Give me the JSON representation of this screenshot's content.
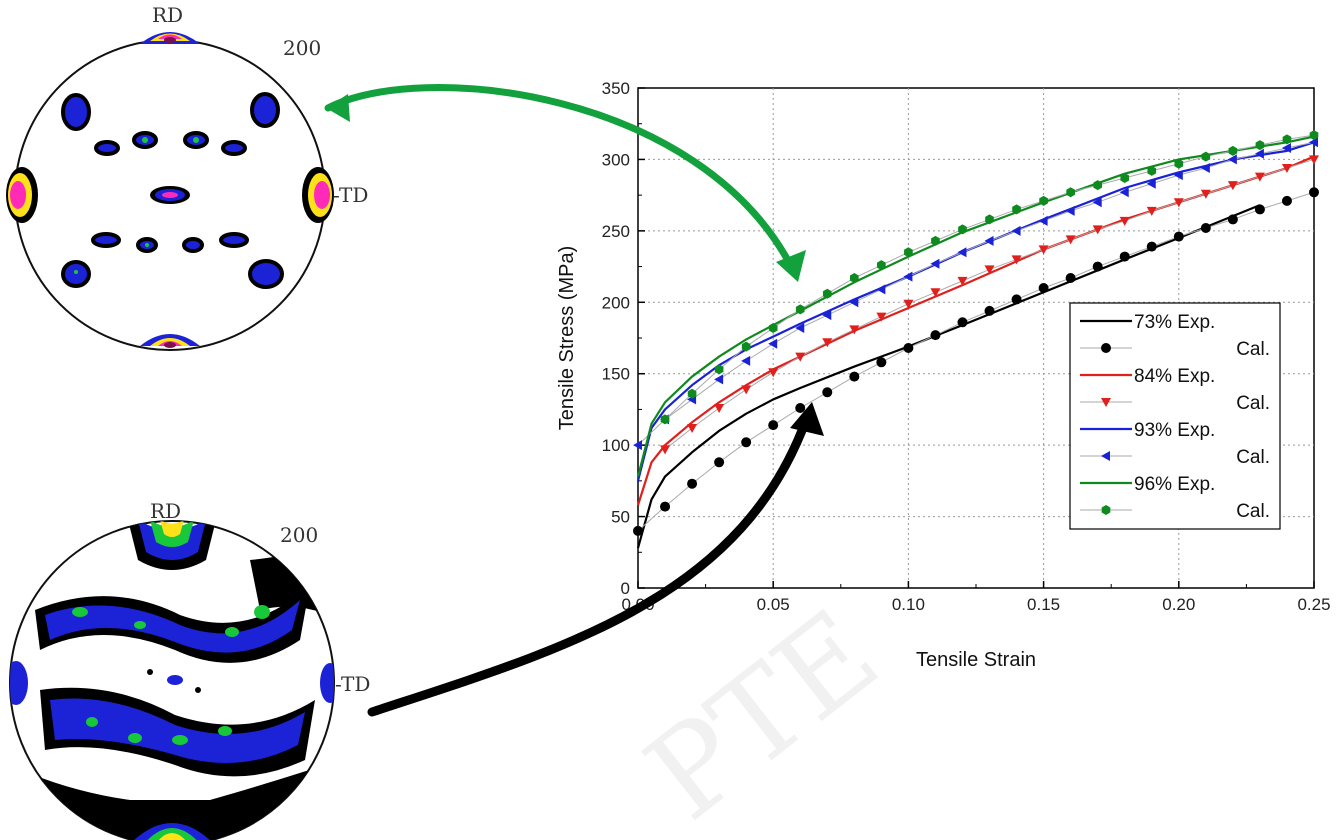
{
  "pole_figures": [
    {
      "rd_label": "RD",
      "td_label": "-TD",
      "index_label": "200"
    },
    {
      "rd_label": "RD",
      "td_label": "-TD",
      "index_label": "200"
    }
  ],
  "colors": {
    "s73": "#000000",
    "s84": "#e0201c",
    "s93": "#1a22d6",
    "s96": "#0e8a1e",
    "green_arrow": "#12a13c",
    "black_arrow": "#000000"
  },
  "chart_data": {
    "type": "line",
    "title": "",
    "xlabel": "Tensile Strain",
    "ylabel": "Tensile Stress (MPa)",
    "xlim": [
      0,
      0.25
    ],
    "ylim": [
      0,
      350
    ],
    "xticks": [
      "0.00",
      "0.05",
      "0.10",
      "0.15",
      "0.20",
      "0.25"
    ],
    "yticks": [
      "0",
      "50",
      "100",
      "150",
      "200",
      "250",
      "300",
      "350"
    ],
    "grid": true,
    "legend_position": "bottom-right",
    "series": [
      {
        "name": "73% Exp.",
        "kind": "line",
        "color_key": "s73",
        "x": [
          0,
          0.005,
          0.01,
          0.02,
          0.03,
          0.04,
          0.05,
          0.06,
          0.08,
          0.1,
          0.12,
          0.15,
          0.18,
          0.2,
          0.23
        ],
        "y": [
          28,
          62,
          78,
          95,
          110,
          122,
          132,
          140,
          155,
          169,
          184,
          207,
          230,
          245,
          268
        ]
      },
      {
        "name": "Cal.",
        "kind": "marker",
        "marker": "circle",
        "color_key": "s73",
        "x": [
          0,
          0.01,
          0.02,
          0.03,
          0.04,
          0.05,
          0.06,
          0.07,
          0.08,
          0.09,
          0.1,
          0.11,
          0.12,
          0.13,
          0.14,
          0.15,
          0.16,
          0.17,
          0.18,
          0.19,
          0.2,
          0.21,
          0.22,
          0.23,
          0.24,
          0.25
        ],
        "y": [
          40,
          57,
          73,
          88,
          102,
          114,
          126,
          137,
          148,
          158,
          168,
          177,
          186,
          194,
          202,
          210,
          217,
          225,
          232,
          239,
          246,
          252,
          258,
          265,
          271,
          277
        ]
      },
      {
        "name": "84% Exp.",
        "kind": "line",
        "color_key": "s84",
        "x": [
          0,
          0.005,
          0.01,
          0.02,
          0.03,
          0.04,
          0.05,
          0.06,
          0.08,
          0.1,
          0.12,
          0.15,
          0.18,
          0.2,
          0.22,
          0.24,
          0.25
        ],
        "y": [
          58,
          88,
          100,
          116,
          130,
          142,
          153,
          162,
          180,
          196,
          212,
          237,
          258,
          270,
          282,
          294,
          302
        ]
      },
      {
        "name": "Cal.",
        "kind": "marker",
        "marker": "triangle-down",
        "color_key": "s84",
        "x": [
          0.01,
          0.02,
          0.03,
          0.04,
          0.05,
          0.06,
          0.07,
          0.08,
          0.09,
          0.1,
          0.11,
          0.12,
          0.13,
          0.14,
          0.15,
          0.16,
          0.17,
          0.18,
          0.19,
          0.2,
          0.21,
          0.22,
          0.23,
          0.24,
          0.25
        ],
        "y": [
          97,
          112,
          126,
          139,
          151,
          162,
          172,
          181,
          190,
          199,
          207,
          215,
          223,
          230,
          237,
          244,
          251,
          257,
          264,
          270,
          276,
          282,
          288,
          294,
          300
        ]
      },
      {
        "name": "93% Exp.",
        "kind": "line",
        "color_key": "s93",
        "x": [
          0,
          0.005,
          0.01,
          0.02,
          0.03,
          0.04,
          0.05,
          0.06,
          0.08,
          0.1,
          0.12,
          0.15,
          0.18,
          0.2,
          0.22,
          0.24,
          0.25
        ],
        "y": [
          75,
          112,
          125,
          142,
          156,
          167,
          176,
          185,
          202,
          218,
          235,
          258,
          280,
          291,
          300,
          306,
          312
        ]
      },
      {
        "name": "Cal.",
        "kind": "marker",
        "marker": "triangle-left",
        "color_key": "s93",
        "x": [
          0,
          0.01,
          0.02,
          0.03,
          0.04,
          0.05,
          0.06,
          0.07,
          0.08,
          0.09,
          0.1,
          0.11,
          0.12,
          0.13,
          0.14,
          0.15,
          0.16,
          0.17,
          0.18,
          0.19,
          0.2,
          0.21,
          0.22,
          0.23,
          0.24,
          0.25
        ],
        "y": [
          100,
          118,
          132,
          146,
          159,
          171,
          182,
          191,
          200,
          209,
          218,
          227,
          235,
          243,
          250,
          257,
          264,
          270,
          277,
          283,
          289,
          294,
          300,
          304,
          308,
          312
        ]
      },
      {
        "name": "96% Exp.",
        "kind": "line",
        "color_key": "s96",
        "x": [
          0,
          0.005,
          0.01,
          0.02,
          0.03,
          0.04,
          0.05,
          0.06,
          0.08,
          0.1,
          0.12,
          0.15,
          0.18,
          0.2,
          0.22,
          0.24,
          0.25
        ],
        "y": [
          78,
          115,
          130,
          148,
          162,
          174,
          184,
          194,
          214,
          232,
          249,
          270,
          290,
          300,
          306,
          312,
          316
        ]
      },
      {
        "name": "Cal.",
        "kind": "marker",
        "marker": "hexagon",
        "color_key": "s96",
        "x": [
          0.01,
          0.02,
          0.03,
          0.04,
          0.05,
          0.06,
          0.07,
          0.08,
          0.09,
          0.1,
          0.11,
          0.12,
          0.13,
          0.14,
          0.15,
          0.16,
          0.17,
          0.18,
          0.19,
          0.2,
          0.21,
          0.22,
          0.23,
          0.24,
          0.25
        ],
        "y": [
          118,
          136,
          153,
          169,
          182,
          195,
          206,
          217,
          226,
          235,
          243,
          251,
          258,
          265,
          271,
          277,
          282,
          287,
          292,
          297,
          302,
          306,
          310,
          314,
          317
        ]
      }
    ],
    "legend": [
      {
        "label": "73% Exp.",
        "kind": "line",
        "color_key": "s73"
      },
      {
        "label": "Cal.",
        "kind": "marker",
        "marker": "circle",
        "color_key": "s73"
      },
      {
        "label": "84% Exp.",
        "kind": "line",
        "color_key": "s84"
      },
      {
        "label": "Cal.",
        "kind": "marker",
        "marker": "triangle-down",
        "color_key": "s84"
      },
      {
        "label": "93% Exp.",
        "kind": "line",
        "color_key": "s93"
      },
      {
        "label": "Cal.",
        "kind": "marker",
        "marker": "triangle-left",
        "color_key": "s93"
      },
      {
        "label": "96% Exp.",
        "kind": "line",
        "color_key": "s96"
      },
      {
        "label": "Cal.",
        "kind": "marker",
        "marker": "hexagon",
        "color_key": "s96"
      }
    ]
  }
}
